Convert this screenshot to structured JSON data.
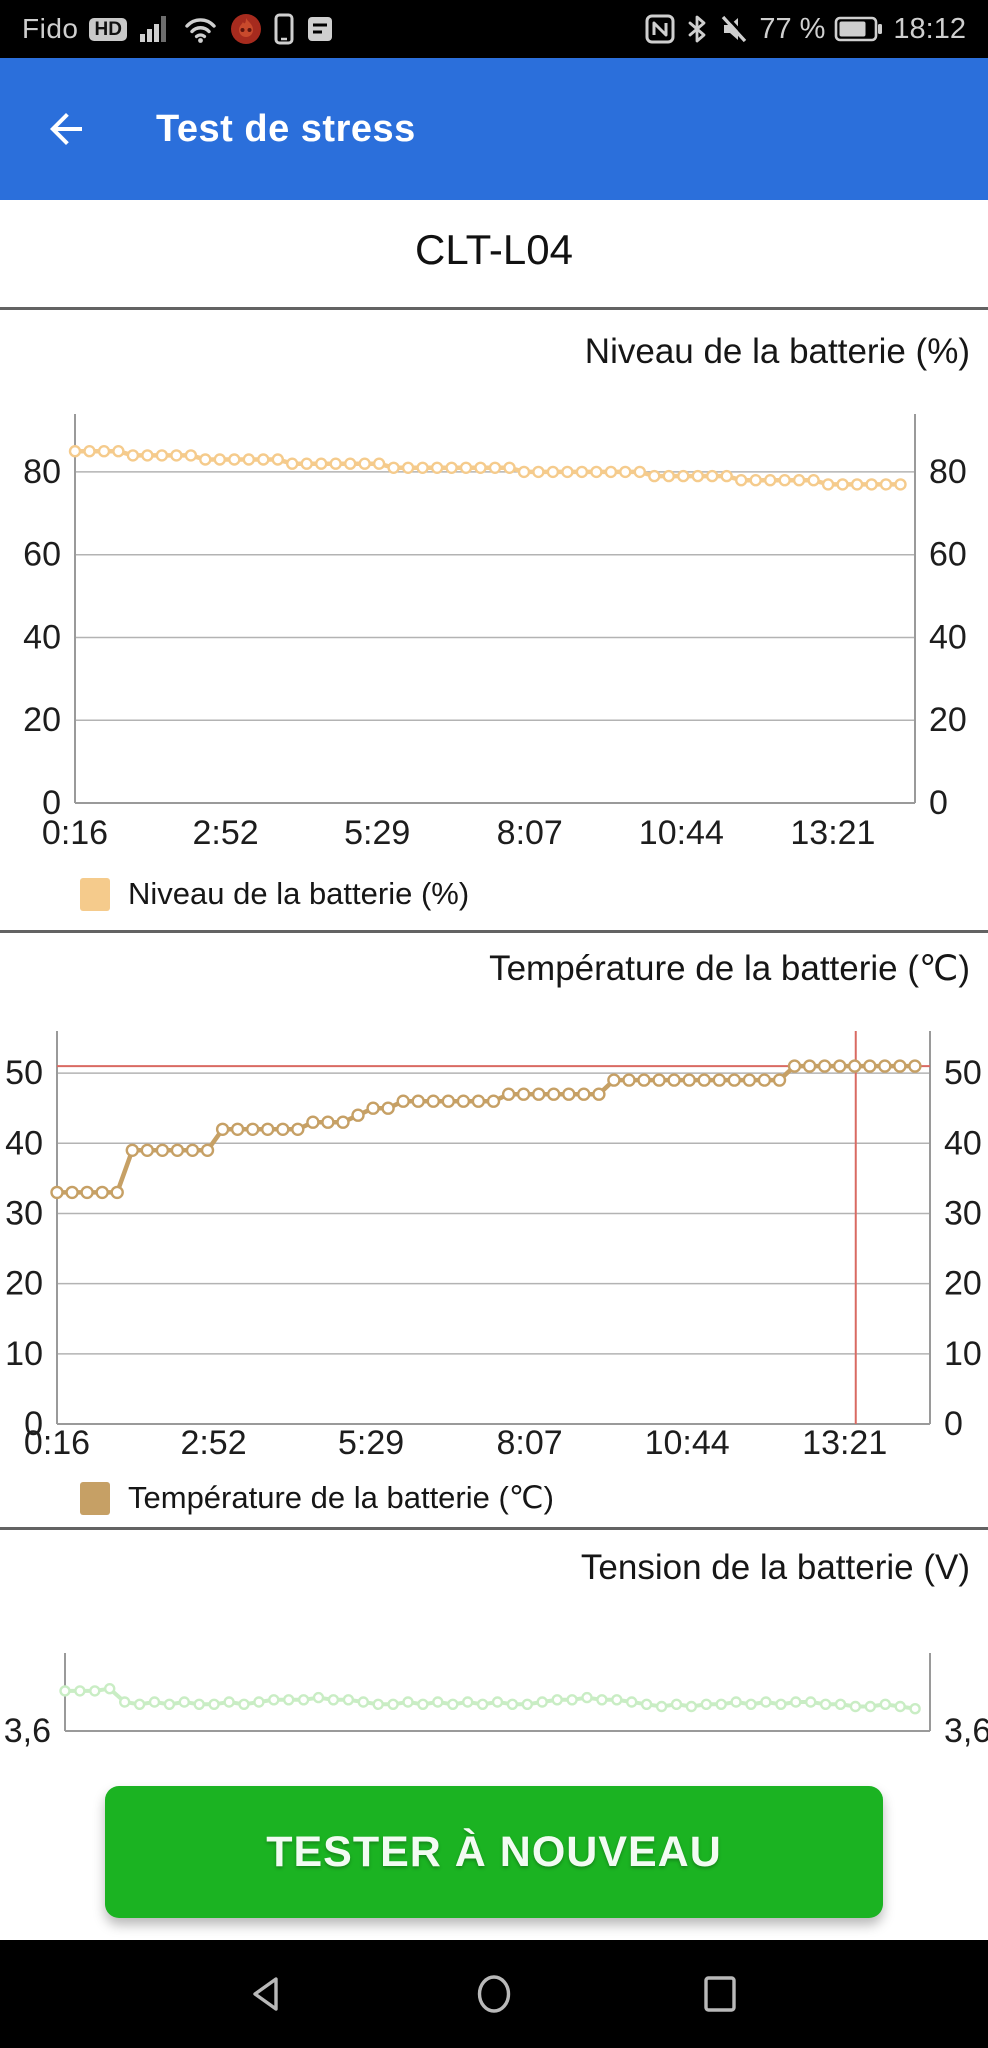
{
  "status_bar": {
    "carrier": "Fido",
    "hd_badge": "HD",
    "battery_percent": "77 %",
    "time": "18:12",
    "left_icons": [
      "signal-bars",
      "wifi",
      "flame-app",
      "phone",
      "messages"
    ],
    "right_icons": [
      "nfc",
      "bluetooth",
      "mute",
      "battery"
    ]
  },
  "app_bar": {
    "title": "Test de stress",
    "back_icon": "arrow-left"
  },
  "device": {
    "model": "CLT-L04"
  },
  "button": {
    "label": "TESTER À NOUVEAU"
  },
  "nav_bar": {
    "icons": [
      "back-triangle",
      "home-circle",
      "recents-square"
    ]
  },
  "colors": {
    "app_bar_blue": "#2b6fdb",
    "button_green": "#1bb322",
    "battery_series": "#f5cb8c",
    "temperature_series": "#c6a065",
    "voltage_series": "#c9edc4",
    "alert_red": "#d96a62"
  },
  "chart_data": [
    {
      "type": "line",
      "title": "Niveau de la batterie (%)",
      "legend": "Niveau de la batterie (%)",
      "color": "#f5cb8c",
      "xlim_minutes": [
        16,
        886
      ],
      "ylim": [
        0,
        94
      ],
      "x_tick_minutes": [
        16,
        172,
        329,
        487,
        644,
        801
      ],
      "x_tick_labels": [
        "0:16",
        "2:52",
        "5:29",
        "8:07",
        "10:44",
        "13:21"
      ],
      "y_ticks": [
        0,
        20,
        40,
        60,
        80
      ],
      "y_tick_labels": [
        "0",
        "20",
        "40",
        "60",
        "80"
      ],
      "x_minutes": [
        16,
        31,
        46,
        61,
        76,
        91,
        106,
        121,
        136,
        151,
        166,
        181,
        196,
        211,
        226,
        241,
        256,
        271,
        286,
        301,
        316,
        331,
        346,
        361,
        376,
        391,
        406,
        421,
        436,
        451,
        466,
        481,
        496,
        511,
        526,
        541,
        556,
        571,
        586,
        601,
        616,
        631,
        646,
        661,
        676,
        691,
        706,
        721,
        736,
        751,
        766,
        781,
        796,
        811,
        826,
        841,
        856,
        871
      ],
      "values": [
        85,
        85,
        85,
        85,
        84,
        84,
        84,
        84,
        84,
        83,
        83,
        83,
        83,
        83,
        83,
        82,
        82,
        82,
        82,
        82,
        82,
        82,
        81,
        81,
        81,
        81,
        81,
        81,
        81,
        81,
        81,
        80,
        80,
        80,
        80,
        80,
        80,
        80,
        80,
        80,
        79,
        79,
        79,
        79,
        79,
        79,
        78,
        78,
        78,
        78,
        78,
        78,
        77,
        77,
        77,
        77,
        77,
        77
      ]
    },
    {
      "type": "line",
      "title": "Température de la batterie (℃)",
      "legend": "Température de la batterie (℃)",
      "color": "#c6a065",
      "xlim_minutes": [
        16,
        886
      ],
      "ylim": [
        0,
        56
      ],
      "x_tick_minutes": [
        16,
        172,
        329,
        487,
        644,
        801
      ],
      "x_tick_labels": [
        "0:16",
        "2:52",
        "5:29",
        "8:07",
        "10:44",
        "13:21"
      ],
      "y_ticks": [
        0,
        10,
        20,
        30,
        40,
        50
      ],
      "y_tick_labels": [
        "0",
        "10",
        "20",
        "30",
        "40",
        "50"
      ],
      "red_hline": 51,
      "red_vline_minute": 812,
      "x_minutes": [
        16,
        31,
        46,
        61,
        76,
        91,
        106,
        121,
        136,
        151,
        166,
        181,
        196,
        211,
        226,
        241,
        256,
        271,
        286,
        301,
        316,
        331,
        346,
        361,
        376,
        391,
        406,
        421,
        436,
        451,
        466,
        481,
        496,
        511,
        526,
        541,
        556,
        571,
        586,
        601,
        616,
        631,
        646,
        661,
        676,
        691,
        706,
        721,
        736,
        751,
        766,
        781,
        796,
        811,
        826,
        841,
        856,
        871
      ],
      "values": [
        33,
        33,
        33,
        33,
        33,
        39,
        39,
        39,
        39,
        39,
        39,
        42,
        42,
        42,
        42,
        42,
        42,
        43,
        43,
        43,
        44,
        45,
        45,
        46,
        46,
        46,
        46,
        46,
        46,
        46,
        47,
        47,
        47,
        47,
        47,
        47,
        47,
        49,
        49,
        49,
        49,
        49,
        49,
        49,
        49,
        49,
        49,
        49,
        49,
        51,
        51,
        51,
        51,
        51,
        51,
        51,
        51,
        51
      ]
    },
    {
      "type": "line",
      "title": "Tension de la batterie (V)",
      "legend": "",
      "color": "#c9edc4",
      "xlim_minutes": [
        16,
        886
      ],
      "ylim": [
        3.6,
        3.95
      ],
      "x_tick_minutes": [],
      "x_tick_labels": [],
      "y_ticks": [
        3.6
      ],
      "y_tick_labels": [
        "3,6"
      ],
      "x_minutes": [
        16,
        31,
        46,
        61,
        76,
        91,
        106,
        121,
        136,
        151,
        166,
        181,
        196,
        211,
        226,
        241,
        256,
        271,
        286,
        301,
        316,
        331,
        346,
        361,
        376,
        391,
        406,
        421,
        436,
        451,
        466,
        481,
        496,
        511,
        526,
        541,
        556,
        571,
        586,
        601,
        616,
        631,
        646,
        661,
        676,
        691,
        706,
        721,
        736,
        751,
        766,
        781,
        796,
        811,
        826,
        841,
        856,
        871
      ],
      "values": [
        3.78,
        3.78,
        3.78,
        3.79,
        3.73,
        3.72,
        3.73,
        3.72,
        3.73,
        3.72,
        3.72,
        3.73,
        3.72,
        3.73,
        3.74,
        3.74,
        3.74,
        3.75,
        3.74,
        3.74,
        3.73,
        3.72,
        3.72,
        3.73,
        3.72,
        3.73,
        3.72,
        3.73,
        3.72,
        3.73,
        3.72,
        3.72,
        3.73,
        3.74,
        3.74,
        3.75,
        3.74,
        3.74,
        3.73,
        3.72,
        3.71,
        3.72,
        3.71,
        3.72,
        3.72,
        3.73,
        3.72,
        3.73,
        3.72,
        3.73,
        3.73,
        3.72,
        3.72,
        3.71,
        3.71,
        3.72,
        3.71,
        3.7
      ]
    }
  ]
}
